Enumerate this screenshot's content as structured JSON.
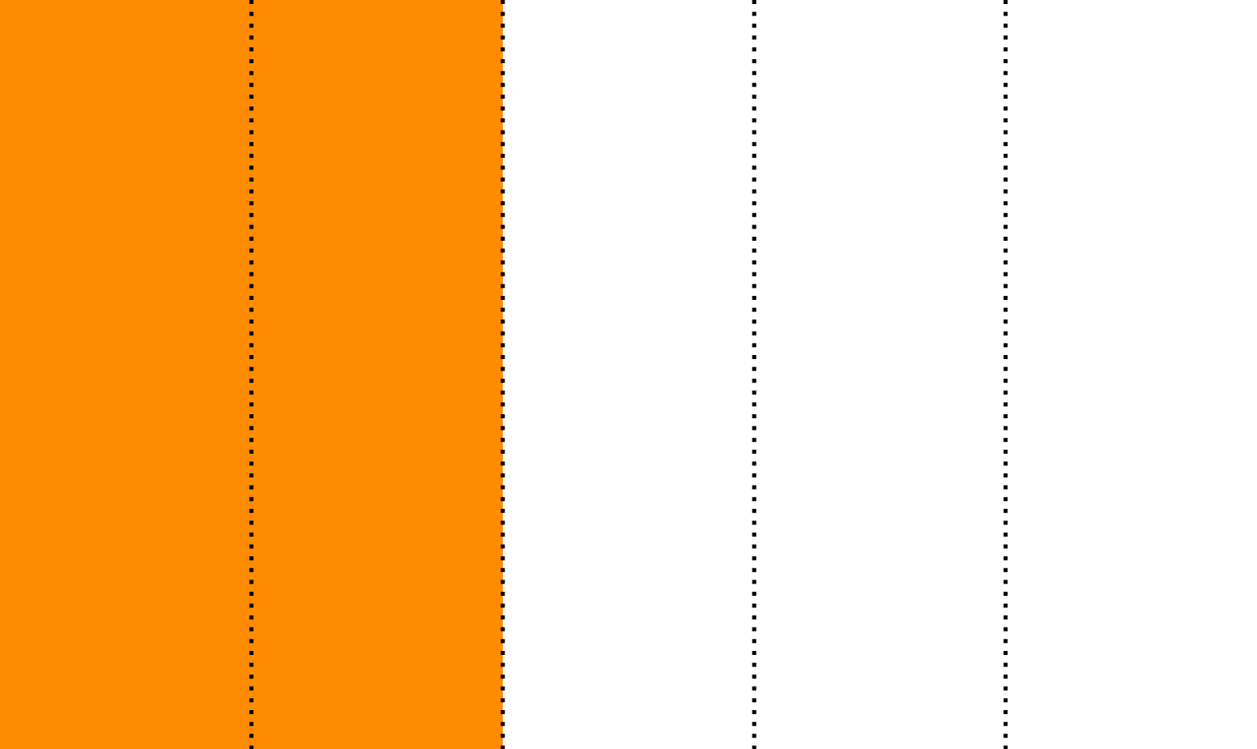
{
  "chart_data": {
    "type": "bar",
    "orientation": "horizontal",
    "categories": [
      ""
    ],
    "values": [
      0.4
    ],
    "xlim": [
      0,
      1
    ],
    "x_gridlines": [
      0.2,
      0.4,
      0.6,
      0.8
    ],
    "grid": true,
    "grid_style": "dotted",
    "legend": "none",
    "title": "",
    "xlabel": "",
    "ylabel": "",
    "bar_color": "#ff8c00",
    "grid_color": "#000000",
    "background_color": "#ffffff"
  }
}
